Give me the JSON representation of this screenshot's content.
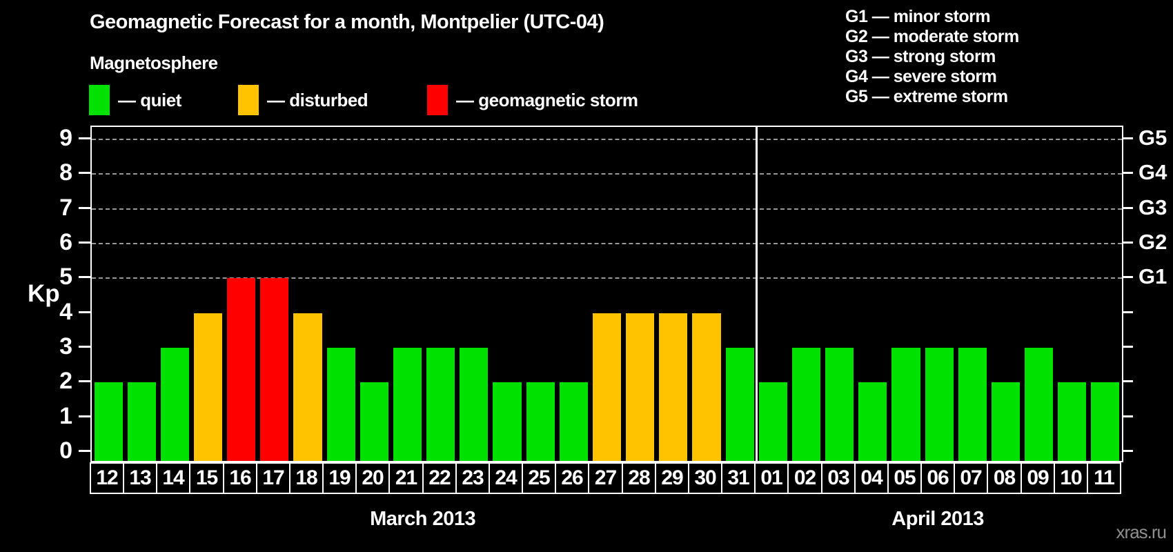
{
  "header": {
    "title": "Geomagnetic Forecast for a month, Montpelier (UTC-04)",
    "subtitle": "Magnetosphere",
    "legend": [
      {
        "key": "quiet",
        "label": "— quiet",
        "color": "#00e100"
      },
      {
        "key": "disturbed",
        "label": "— disturbed",
        "color": "#ffc300"
      },
      {
        "key": "storm",
        "label": "— geomagnetic storm",
        "color": "#ff0000"
      }
    ],
    "g_scale_legend": [
      "G1 — minor storm",
      "G2 — moderate storm",
      "G3 — strong storm",
      "G4 — severe storm",
      "G5 — extreme storm"
    ]
  },
  "watermark": "xras.ru",
  "chart_data": {
    "type": "bar",
    "title": "Geomagnetic Forecast for a month, Montpelier (UTC-04)",
    "ylabel": "Kp",
    "ylim": [
      0,
      9
    ],
    "yticks": [
      0,
      1,
      2,
      3,
      4,
      5,
      6,
      7,
      8,
      9
    ],
    "gridlines_at_kp": [
      5,
      6,
      7,
      8,
      9
    ],
    "grid_style": "dashed, only at storm levels Kp 5-9",
    "legend_position": "top",
    "right_axis_labels": [
      {
        "kp": 5,
        "label": "G1"
      },
      {
        "kp": 6,
        "label": "G2"
      },
      {
        "kp": 7,
        "label": "G3"
      },
      {
        "kp": 8,
        "label": "G4"
      },
      {
        "kp": 9,
        "label": "G5"
      }
    ],
    "status_colors": {
      "quiet": "#00e100",
      "disturbed": "#ffc300",
      "storm": "#ff0000"
    },
    "months": [
      {
        "label": "March 2013",
        "days": [
          {
            "day": "12",
            "kp": 2,
            "status": "quiet"
          },
          {
            "day": "13",
            "kp": 2,
            "status": "quiet"
          },
          {
            "day": "14",
            "kp": 3,
            "status": "quiet"
          },
          {
            "day": "15",
            "kp": 4,
            "status": "disturbed"
          },
          {
            "day": "16",
            "kp": 5,
            "status": "storm"
          },
          {
            "day": "17",
            "kp": 5,
            "status": "storm"
          },
          {
            "day": "18",
            "kp": 4,
            "status": "disturbed"
          },
          {
            "day": "19",
            "kp": 3,
            "status": "quiet"
          },
          {
            "day": "20",
            "kp": 2,
            "status": "quiet"
          },
          {
            "day": "21",
            "kp": 3,
            "status": "quiet"
          },
          {
            "day": "22",
            "kp": 3,
            "status": "quiet"
          },
          {
            "day": "23",
            "kp": 3,
            "status": "quiet"
          },
          {
            "day": "24",
            "kp": 2,
            "status": "quiet"
          },
          {
            "day": "25",
            "kp": 2,
            "status": "quiet"
          },
          {
            "day": "26",
            "kp": 2,
            "status": "quiet"
          },
          {
            "day": "27",
            "kp": 4,
            "status": "disturbed"
          },
          {
            "day": "28",
            "kp": 4,
            "status": "disturbed"
          },
          {
            "day": "29",
            "kp": 4,
            "status": "disturbed"
          },
          {
            "day": "30",
            "kp": 4,
            "status": "disturbed"
          },
          {
            "day": "31",
            "kp": 3,
            "status": "quiet"
          }
        ]
      },
      {
        "label": "April 2013",
        "days": [
          {
            "day": "01",
            "kp": 2,
            "status": "quiet"
          },
          {
            "day": "02",
            "kp": 3,
            "status": "quiet"
          },
          {
            "day": "03",
            "kp": 3,
            "status": "quiet"
          },
          {
            "day": "04",
            "kp": 2,
            "status": "quiet"
          },
          {
            "day": "05",
            "kp": 3,
            "status": "quiet"
          },
          {
            "day": "06",
            "kp": 3,
            "status": "quiet"
          },
          {
            "day": "07",
            "kp": 3,
            "status": "quiet"
          },
          {
            "day": "08",
            "kp": 2,
            "status": "quiet"
          },
          {
            "day": "09",
            "kp": 3,
            "status": "quiet"
          },
          {
            "day": "10",
            "kp": 2,
            "status": "quiet"
          },
          {
            "day": "11",
            "kp": 2,
            "status": "quiet"
          }
        ]
      }
    ]
  }
}
